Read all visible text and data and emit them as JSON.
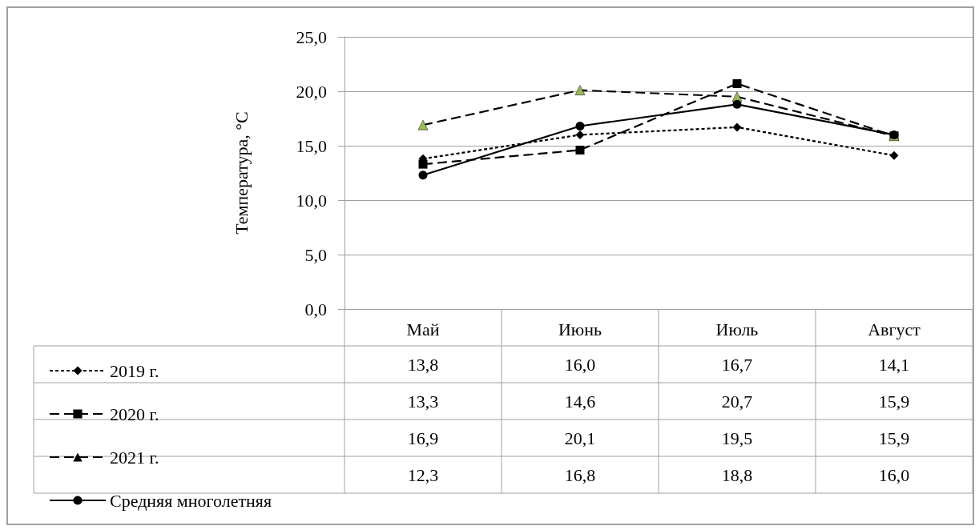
{
  "chart_data": {
    "type": "line",
    "ylabel": "Температура, °С",
    "categories": [
      "Май",
      "Июнь",
      "Июль",
      "Август"
    ],
    "series": [
      {
        "name": "2019 г.",
        "color": "#000000",
        "marker": "diamond",
        "line_style": "dotted",
        "values": [
          13.8,
          16.0,
          16.7,
          14.1
        ],
        "value_labels": [
          "13,8",
          "16,0",
          "16,7",
          "14,1"
        ]
      },
      {
        "name": "2020 г.",
        "color": "#000000",
        "marker": "square",
        "line_style": "dashed",
        "values": [
          13.3,
          14.6,
          20.7,
          15.9
        ],
        "value_labels": [
          "13,3",
          "14,6",
          "20,7",
          "15,9"
        ]
      },
      {
        "name": "2021 г.",
        "color": "#000000",
        "colors": [
          "#9bbb59",
          "#9bbb59",
          "#9bbb59",
          "#9bbb59"
        ],
        "marker": "triangle",
        "line_style": "dashed",
        "values": [
          16.9,
          20.1,
          19.5,
          15.9
        ],
        "value_labels": [
          "16,9",
          "20,1",
          "19,5",
          "15,9"
        ]
      },
      {
        "name": "Средняя многолетняя",
        "color": "#000000",
        "marker": "circle",
        "line_style": "solid",
        "values": [
          12.3,
          16.8,
          18.8,
          16.0
        ],
        "value_labels": [
          "12,3",
          "16,8",
          "18,8",
          "16,0"
        ]
      }
    ],
    "ylim": [
      0,
      25
    ],
    "yticks": [
      {
        "value": 0,
        "label": "0,0"
      },
      {
        "value": 5,
        "label": "5,0"
      },
      {
        "value": 10,
        "label": "10,0"
      },
      {
        "value": 15,
        "label": "15,0"
      },
      {
        "value": 20,
        "label": "20,0"
      },
      {
        "value": 25,
        "label": "25,0"
      }
    ],
    "grid": "y",
    "legend": "bottom left"
  }
}
